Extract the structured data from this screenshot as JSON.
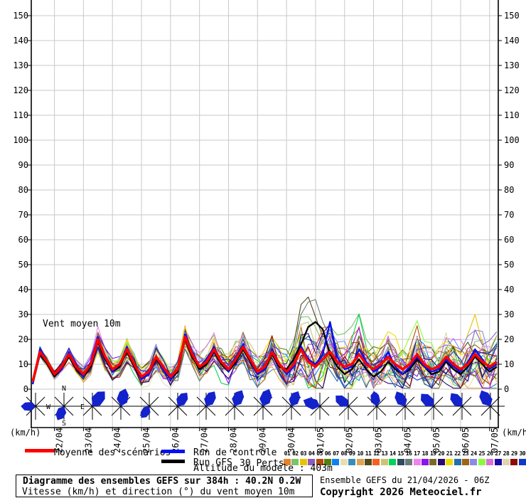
{
  "legend": {
    "mean_label": "Moyenne des scénarios",
    "control_label": "Run de contrôle",
    "gfs_label": "Run GFS",
    "perts_label": "30 Perts.",
    "altitude_label": "Altitude du modele : 403m",
    "mean_color": "#FF0000",
    "control_color": "#0013EE",
    "gfs_color": "#000000"
  },
  "footer": {
    "title": "Diagramme des ensembles GEFS sur 384h : 40.2N 0.2W",
    "subtitle": "Vitesse (km/h) et direction (°) du vent moyen 10m",
    "run_info": "Ensemble GEFS du 21/04/2026 - 06Z",
    "copyright": "Copyright 2026 Meteociel.fr"
  },
  "chart_data": {
    "type": "line",
    "annotation": "Vent moyen 10m",
    "unit": "(km/h)",
    "ylim": [
      0,
      155
    ],
    "y_ticks": [
      0,
      10,
      20,
      30,
      40,
      50,
      60,
      70,
      80,
      90,
      100,
      110,
      120,
      130,
      140,
      150
    ],
    "x_start": "21/04 06Z",
    "step_hours": 6,
    "n_points": 65,
    "x_tick_labels": [
      "22/04",
      "23/04",
      "24/04",
      "25/04",
      "26/04",
      "27/04",
      "28/04",
      "29/04",
      "30/04",
      "01/05",
      "02/05",
      "03/05",
      "04/05",
      "05/05",
      "06/05",
      "07/05"
    ],
    "grid": true,
    "mean": [
      3,
      15,
      11,
      6,
      9,
      14,
      9,
      6,
      10,
      20,
      13,
      8,
      10,
      16,
      10,
      5,
      7,
      13,
      9,
      5,
      8,
      21,
      14,
      9,
      11,
      16,
      11,
      8,
      12,
      17,
      12,
      7,
      9,
      15,
      10,
      7,
      10,
      16,
      11,
      9,
      12,
      15,
      11,
      9,
      10,
      14,
      10,
      8,
      10,
      13,
      10,
      8,
      10,
      14,
      10,
      8,
      9,
      13,
      10,
      8,
      10,
      14,
      11,
      9,
      11
    ],
    "control": [
      2,
      16,
      11,
      6,
      8,
      15,
      9,
      5,
      11,
      21,
      13,
      7,
      10,
      17,
      10,
      4,
      6,
      13,
      8,
      4,
      8,
      22,
      15,
      9,
      12,
      17,
      11,
      7,
      13,
      18,
      12,
      6,
      8,
      16,
      10,
      6,
      9,
      17,
      12,
      10,
      14,
      27,
      13,
      8,
      9,
      16,
      11,
      7,
      9,
      15,
      9,
      6,
      9,
      13,
      9,
      7,
      8,
      12,
      9,
      7,
      11,
      16,
      12,
      8,
      10
    ],
    "gfs": [
      2,
      14,
      10,
      5,
      8,
      13,
      8,
      5,
      9,
      19,
      12,
      7,
      9,
      15,
      9,
      4,
      6,
      12,
      8,
      4,
      7,
      20,
      13,
      8,
      10,
      15,
      10,
      7,
      11,
      16,
      11,
      6,
      8,
      14,
      9,
      8,
      12,
      18,
      25,
      27,
      24,
      14,
      9,
      6,
      8,
      12,
      8,
      5,
      7,
      11,
      8,
      6,
      8,
      12,
      9,
      6,
      7,
      11,
      8,
      6,
      9,
      13,
      10,
      7,
      9
    ],
    "spread": [
      1,
      2,
      2,
      2,
      2,
      3,
      3,
      3,
      3,
      4,
      4,
      4,
      4,
      4,
      4,
      4,
      4,
      5,
      5,
      4,
      5,
      5,
      5,
      5,
      5,
      6,
      6,
      6,
      6,
      6,
      6,
      6,
      7,
      7,
      7,
      8,
      9,
      12,
      13,
      12,
      12,
      10,
      9,
      10,
      11,
      12,
      10,
      9,
      10,
      11,
      10,
      9,
      10,
      11,
      10,
      9,
      9,
      10,
      10,
      9,
      9,
      11,
      10,
      9,
      10
    ],
    "members": {
      "count": 30,
      "labels": [
        "01",
        "02",
        "03",
        "04",
        "05",
        "06",
        "07",
        "08",
        "09",
        "10",
        "11",
        "12",
        "13",
        "14",
        "15",
        "16",
        "17",
        "18",
        "19",
        "20",
        "21",
        "22",
        "23",
        "24",
        "25",
        "26",
        "27",
        "28",
        "29",
        "30"
      ],
      "colors": [
        "#E8822A",
        "#7CC36B",
        "#E8C400",
        "#8E5BB8",
        "#B34A0A",
        "#567F0A",
        "#1080F0",
        "#E8DDB5",
        "#3A8CB8",
        "#E0A352",
        "#554A1A",
        "#F7601E",
        "#CFC277",
        "#00D35A",
        "#2C4D5E",
        "#6A7B7B",
        "#EE82EE",
        "#8A15F0",
        "#7B6A26",
        "#2A0A6E",
        "#EEDC00",
        "#2470A8",
        "#9C6414",
        "#8A8AE8",
        "#8CFA3C",
        "#DA70D6",
        "#1C0AA8",
        "#E0D5AE",
        "#8E0A0A",
        "#1038C8"
      ]
    },
    "member_bumps": [
      {
        "member": 11,
        "at": 36,
        "values": [
          8,
          18,
          26,
          20,
          9
        ]
      },
      {
        "member": 16,
        "at": 36,
        "values": [
          5,
          14,
          24,
          27,
          15,
          6
        ]
      },
      {
        "member": 13,
        "at": 37,
        "values": [
          10,
          16,
          8
        ]
      },
      {
        "member": 14,
        "at": 44,
        "values": [
          10,
          16,
          7
        ]
      },
      {
        "member": 3,
        "at": 59,
        "values": [
          6,
          12,
          16,
          7
        ]
      },
      {
        "member": 21,
        "at": 20,
        "values": [
          2,
          4,
          2
        ]
      }
    ],
    "wind_roses": {
      "color": "#1422CC",
      "compass": [
        "N",
        "E",
        "S",
        "W"
      ],
      "roses": [
        {
          "d": 270,
          "s": 0.55
        },
        {
          "d": 205,
          "s": 0.6
        },
        {
          "d": 40,
          "s": 0.95
        },
        {
          "d": 15,
          "s": 0.85
        },
        {
          "d": 215,
          "s": 0.5
        },
        {
          "d": 35,
          "s": 0.7
        },
        {
          "d": 30,
          "s": 0.75
        },
        {
          "d": 25,
          "s": 0.8
        },
        {
          "d": 20,
          "s": 0.85
        },
        {
          "d": 25,
          "s": 0.7
        },
        {
          "d": 290,
          "s": 0.8
        },
        {
          "d": 310,
          "s": 0.7
        },
        {
          "d": 350,
          "s": 0.6
        },
        {
          "d": 330,
          "s": 0.75
        },
        {
          "d": 315,
          "s": 0.8
        },
        {
          "d": 320,
          "s": 0.75
        },
        {
          "d": 330,
          "s": 0.85
        }
      ]
    }
  }
}
